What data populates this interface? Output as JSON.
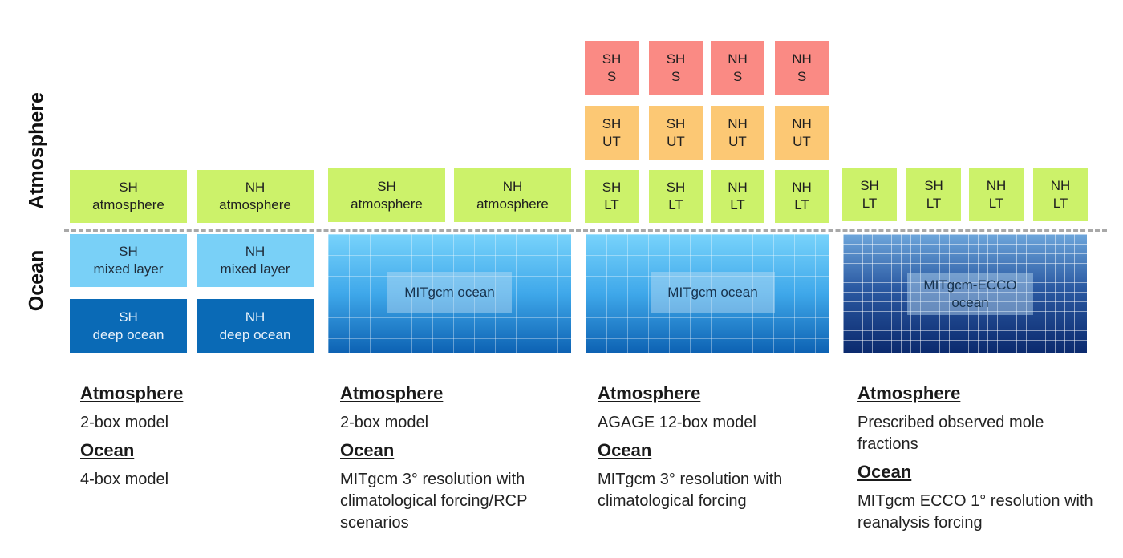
{
  "side_labels": {
    "atmosphere": "Atmosphere",
    "ocean": "Ocean"
  },
  "panel1": {
    "atm_sh": "SH\natmosphere",
    "atm_nh": "NH\natmosphere",
    "ml_sh": "SH\nmixed layer",
    "ml_nh": "NH\nmixed layer",
    "deep_sh": "SH\ndeep ocean",
    "deep_nh": "NH\ndeep ocean"
  },
  "panel2": {
    "atm_sh": "SH\natmosphere",
    "atm_nh": "NH\natmosphere",
    "ocean": "MITgcm ocean"
  },
  "panel3": {
    "stratosphere": [
      "SH\nS",
      "SH\nS",
      "NH\nS",
      "NH\nS"
    ],
    "upper_troposphere": [
      "SH\nUT",
      "SH\nUT",
      "NH\nUT",
      "NH\nUT"
    ],
    "lower_troposphere": [
      "SH\nLT",
      "SH\nLT",
      "NH\nLT",
      "NH\nLT"
    ],
    "ocean": "MITgcm ocean"
  },
  "panel4": {
    "lower_troposphere": [
      "SH\nLT",
      "SH\nLT",
      "NH\nLT",
      "NH\nLT"
    ],
    "ocean": "MITgcm-ECCO\nocean"
  },
  "descriptions": [
    {
      "atm_head": "Atmosphere",
      "atm_text": "2-box model",
      "ocean_head": "Ocean",
      "ocean_text": "4-box model"
    },
    {
      "atm_head": "Atmosphere",
      "atm_text": "2-box model",
      "ocean_head": "Ocean",
      "ocean_text": "MITgcm 3° resolution with climatological forcing/RCP scenarios"
    },
    {
      "atm_head": "Atmosphere",
      "atm_text": "AGAGE 12-box model",
      "ocean_head": "Ocean",
      "ocean_text": "MITgcm 3° resolution with climatological forcing"
    },
    {
      "atm_head": "Atmosphere",
      "atm_text": "Prescribed observed mole fractions",
      "ocean_head": "Ocean",
      "ocean_text": "MITgcm ECCO 1° resolution with reanalysis forcing"
    }
  ],
  "colors": {
    "atmosphere_box": "#ccf26a",
    "upper_troposphere_box": "#fcc874",
    "stratosphere_box": "#fa8a84",
    "mixed_layer_box": "#79d0f7",
    "deep_ocean_box": "#0a6ab6",
    "divider": "#a8a8a8"
  }
}
